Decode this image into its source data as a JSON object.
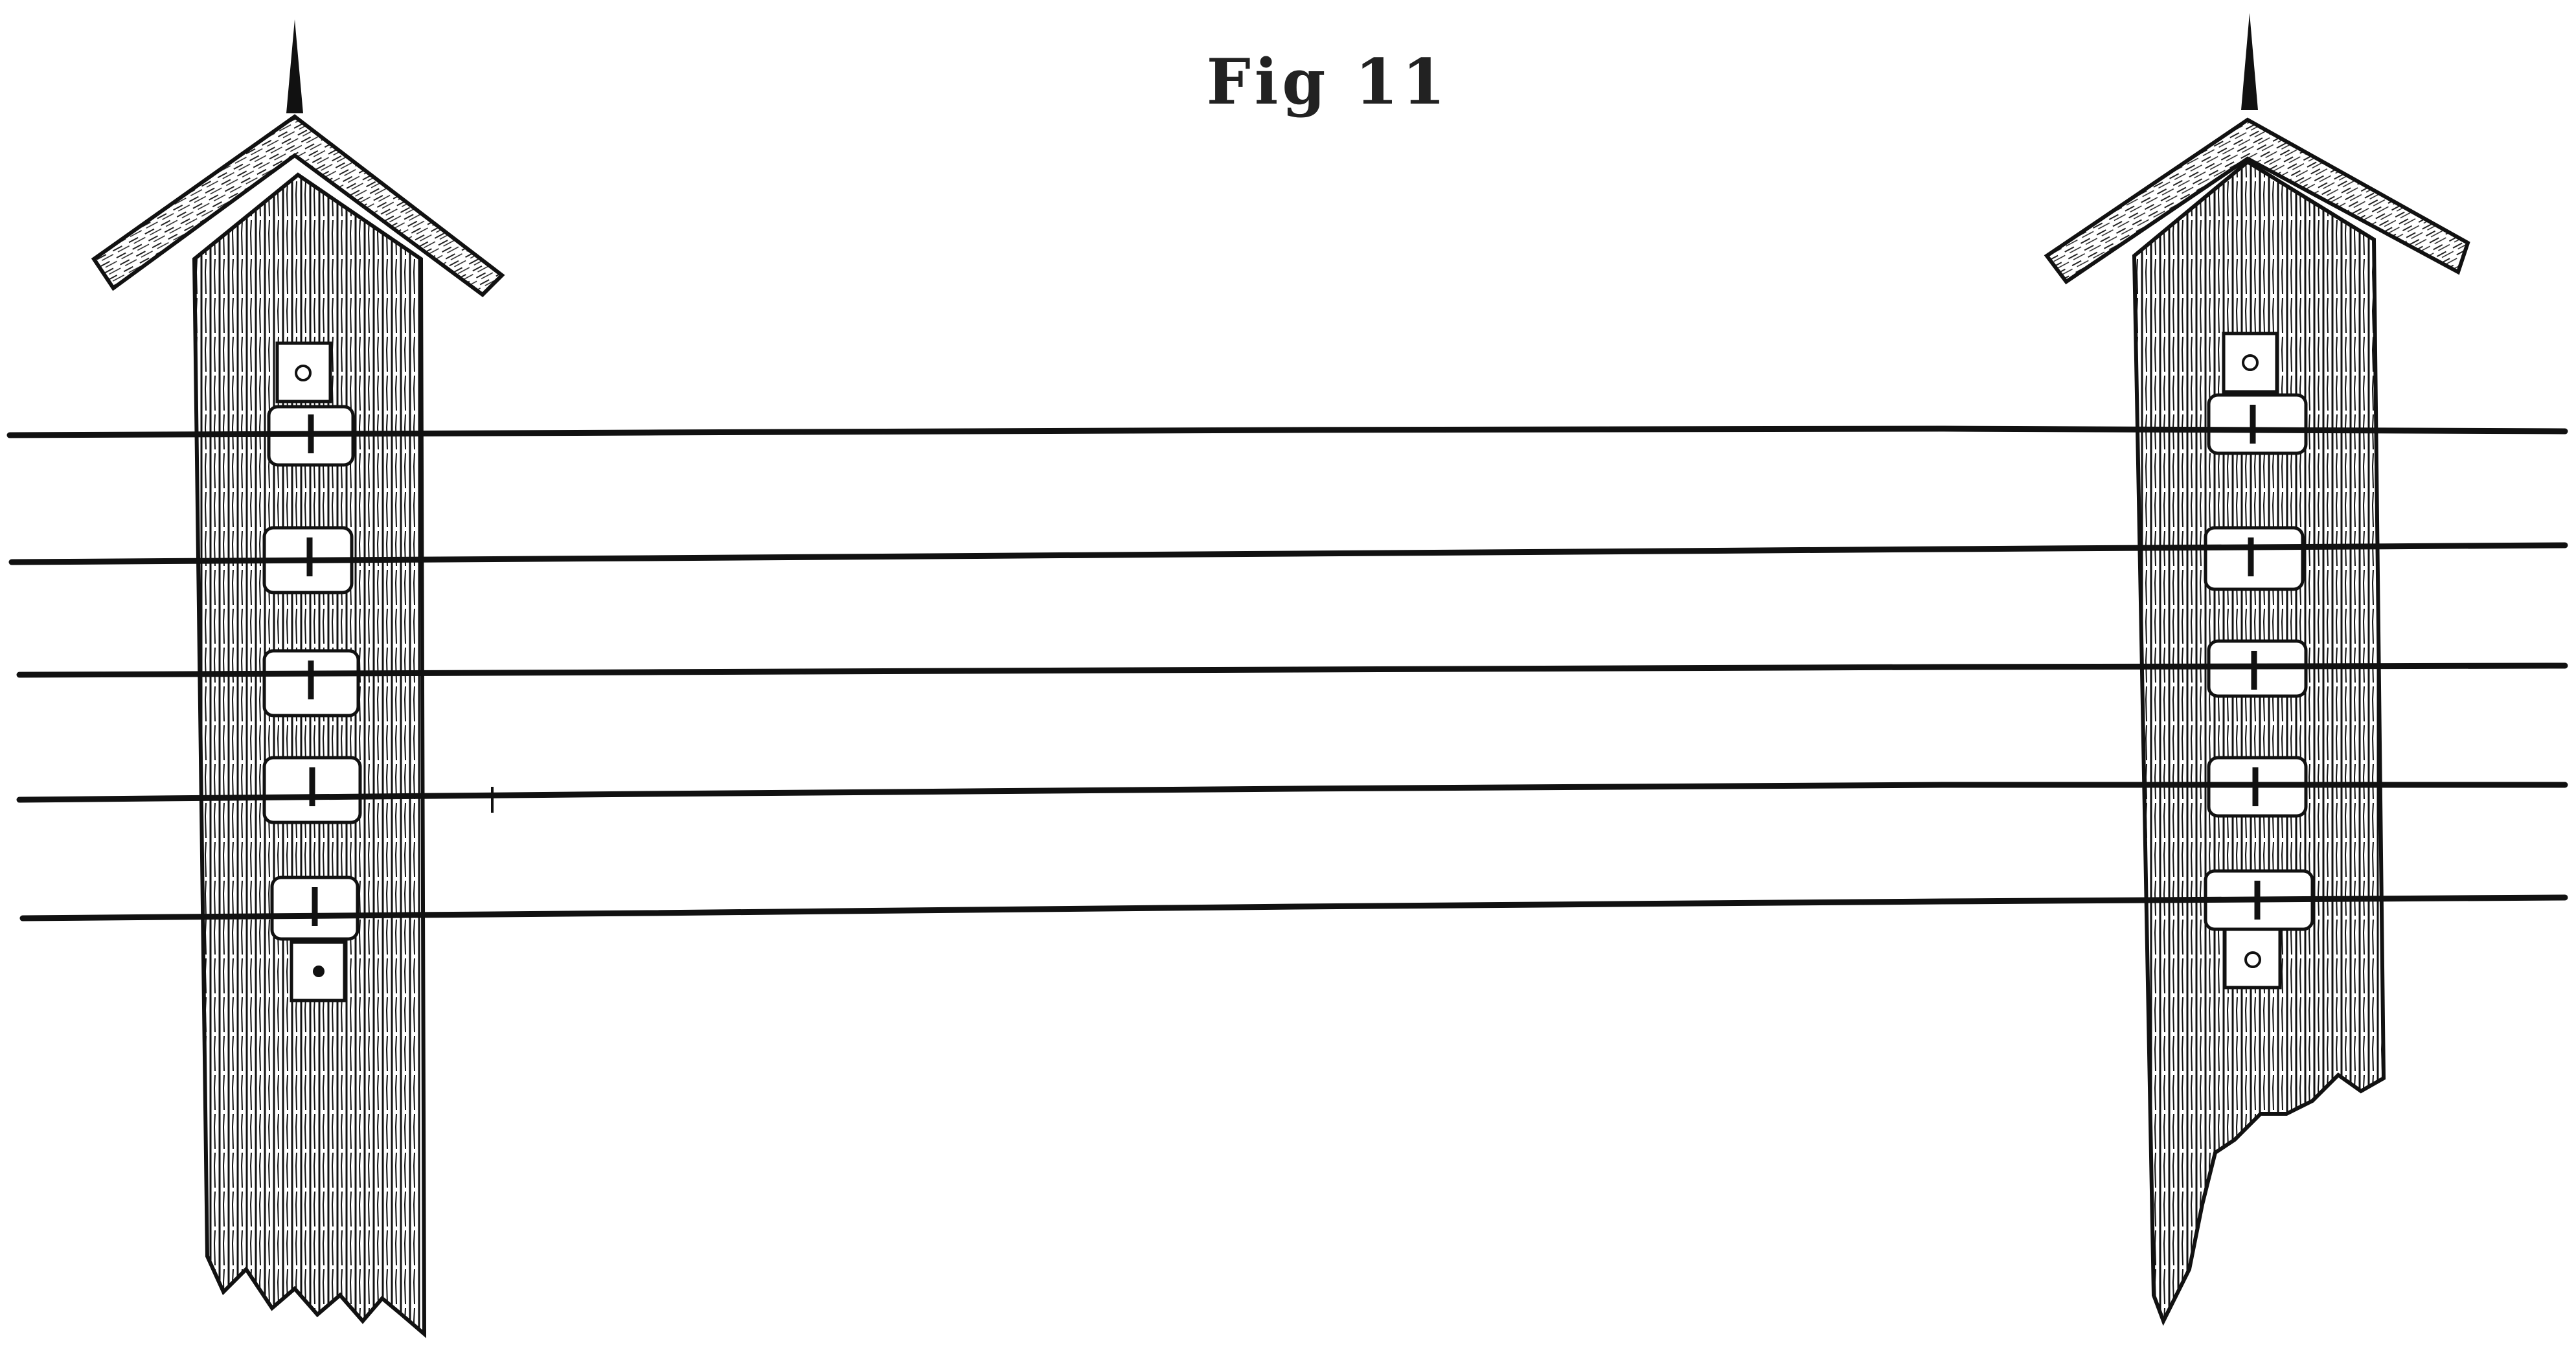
{
  "figure": {
    "caption": "Fig 11"
  },
  "colors": {
    "ink": "#111111",
    "paper": "#ffffff"
  }
}
